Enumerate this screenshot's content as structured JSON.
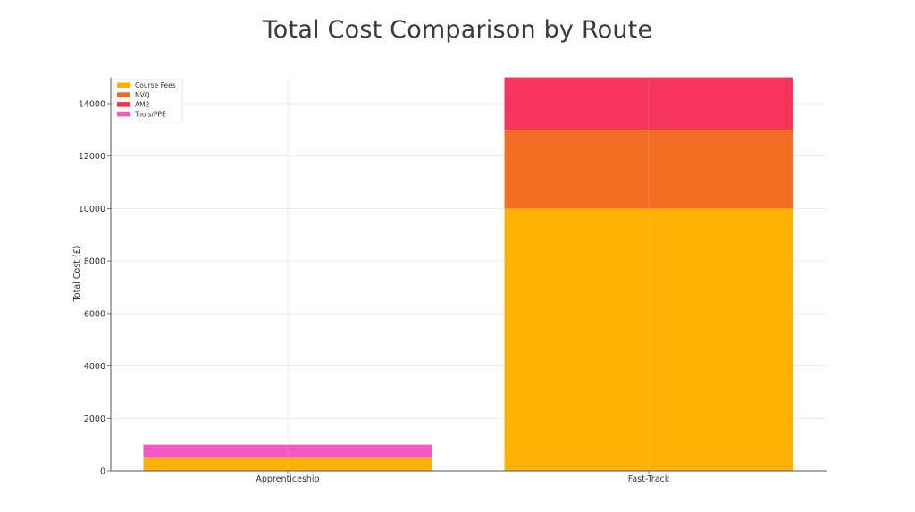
{
  "chart_data": {
    "type": "bar",
    "stacked": true,
    "title": "Total Cost Comparison by Route",
    "xlabel": "",
    "ylabel": "Total Cost (£)",
    "categories": [
      "Apprenticeship",
      "Fast-Track"
    ],
    "series": [
      {
        "name": "Course Fees",
        "color": "#FFB000",
        "values": [
          500,
          10000
        ]
      },
      {
        "name": "NVQ",
        "color": "#F26B21",
        "values": [
          0,
          3000
        ]
      },
      {
        "name": "AM2",
        "color": "#F43058",
        "values": [
          0,
          2000
        ]
      },
      {
        "name": "Tools/PPE",
        "color": "#F556C0",
        "values": [
          500,
          0
        ]
      }
    ],
    "ylim": [
      0,
      15000
    ],
    "yticks": [
      0,
      2000,
      4000,
      6000,
      8000,
      10000,
      12000,
      14000
    ],
    "grid": true,
    "legend_position": "upper left"
  }
}
